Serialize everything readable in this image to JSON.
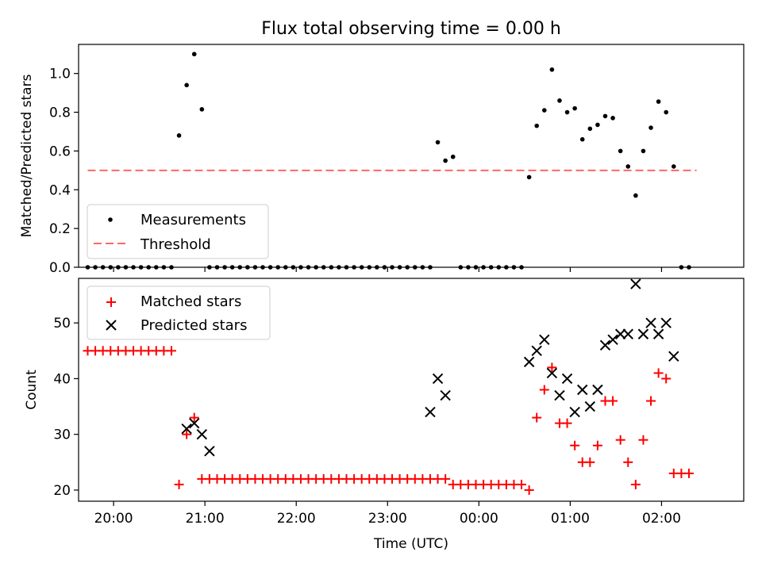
{
  "chart_data": [
    {
      "type": "scatter",
      "title": "Flux total observing time = 0.00 h",
      "ylabel": "Matched/Predicted stars",
      "xlabel": "",
      "xlim": [
        "19:37",
        "02:54"
      ],
      "ylim": [
        0,
        1.15
      ],
      "yticks": [
        0.0,
        0.2,
        0.4,
        0.6,
        0.8,
        1.0
      ],
      "ytick_labels": [
        "0.0",
        "0.2",
        "0.4",
        "0.6",
        "0.8",
        "1.0"
      ],
      "legend_position": "lower-left",
      "series": [
        {
          "name": "Measurements",
          "marker": "dot",
          "color": "#000000",
          "x": [
            "19:43",
            "19:48",
            "19:53",
            "19:58",
            "20:03",
            "20:08",
            "20:13",
            "20:18",
            "20:23",
            "20:28",
            "20:33",
            "20:38",
            "20:43",
            "20:48",
            "20:53",
            "20:58",
            "21:03",
            "21:08",
            "21:13",
            "21:18",
            "21:23",
            "21:28",
            "21:33",
            "21:38",
            "21:43",
            "21:48",
            "21:53",
            "21:58",
            "22:03",
            "22:08",
            "22:13",
            "22:18",
            "22:23",
            "22:28",
            "22:33",
            "22:38",
            "22:43",
            "22:48",
            "22:53",
            "22:58",
            "23:03",
            "23:08",
            "23:13",
            "23:18",
            "23:23",
            "23:28",
            "23:33",
            "23:38",
            "23:43",
            "23:48",
            "23:53",
            "23:58",
            "00:03",
            "00:08",
            "00:13",
            "00:18",
            "00:23",
            "00:28",
            "00:33",
            "00:38",
            "00:43",
            "00:48",
            "00:53",
            "00:58",
            "01:03",
            "01:08",
            "01:13",
            "01:18",
            "01:23",
            "01:28",
            "01:33",
            "01:38",
            "01:43",
            "01:48",
            "01:53",
            "01:58",
            "02:03",
            "02:08",
            "02:13",
            "02:18"
          ],
          "y": [
            0,
            0,
            0,
            0,
            0,
            0,
            0,
            0,
            0,
            0,
            0,
            0,
            0.68,
            0.94,
            1.1,
            0.815,
            0,
            0,
            0,
            0,
            0,
            0,
            0,
            0,
            0,
            0,
            0,
            0,
            0,
            0,
            0,
            0,
            0,
            0,
            0,
            0,
            0,
            0,
            0,
            0,
            0,
            0,
            0,
            0,
            0,
            0,
            0.645,
            0.55,
            0.57,
            0,
            0,
            0,
            0,
            0,
            0,
            0,
            0,
            0,
            0.465,
            0.73,
            0.81,
            1.02,
            0.86,
            0.8,
            0.82,
            0.66,
            0.715,
            0.735,
            0.78,
            0.77,
            0.6,
            0.52,
            0.37,
            0.6,
            0.72,
            0.855,
            0.8,
            0.52,
            0,
            0
          ]
        },
        {
          "name": "Threshold",
          "style": "dashed",
          "color": "#ff6666",
          "x": [
            "19:43",
            "02:23"
          ],
          "y": [
            0.5,
            0.5
          ]
        }
      ]
    },
    {
      "type": "scatter",
      "title": "",
      "ylabel": "Count",
      "xlabel": "Time (UTC)",
      "xlim": [
        "19:37",
        "02:54"
      ],
      "xticks": [
        "20:00",
        "21:00",
        "22:00",
        "23:00",
        "00:00",
        "01:00",
        "02:00"
      ],
      "ylim": [
        18,
        58
      ],
      "yticks": [
        20,
        30,
        40,
        50
      ],
      "ytick_labels": [
        "20",
        "30",
        "40",
        "50"
      ],
      "legend_position": "upper-left",
      "series": [
        {
          "name": "Matched stars",
          "marker": "plus",
          "color": "#ff0000",
          "x": [
            "19:43",
            "19:48",
            "19:53",
            "19:58",
            "20:03",
            "20:08",
            "20:13",
            "20:18",
            "20:23",
            "20:28",
            "20:33",
            "20:38",
            "20:43",
            "20:48",
            "20:53",
            "20:58",
            "21:03",
            "21:08",
            "21:13",
            "21:18",
            "21:23",
            "21:28",
            "21:33",
            "21:38",
            "21:43",
            "21:48",
            "21:53",
            "21:58",
            "22:03",
            "22:08",
            "22:13",
            "22:18",
            "22:23",
            "22:28",
            "22:33",
            "22:38",
            "22:43",
            "22:48",
            "22:53",
            "22:58",
            "23:03",
            "23:08",
            "23:13",
            "23:18",
            "23:23",
            "23:28",
            "23:33",
            "23:38",
            "23:43",
            "23:48",
            "23:53",
            "23:58",
            "00:03",
            "00:08",
            "00:13",
            "00:18",
            "00:23",
            "00:28",
            "00:33",
            "00:38",
            "00:43",
            "00:48",
            "00:53",
            "00:58",
            "01:03",
            "01:08",
            "01:13",
            "01:18",
            "01:23",
            "01:28",
            "01:33",
            "01:38",
            "01:43",
            "01:48",
            "01:53",
            "01:58",
            "02:03",
            "02:08",
            "02:13",
            "02:18"
          ],
          "y": [
            45,
            45,
            45,
            45,
            45,
            45,
            45,
            45,
            45,
            45,
            45,
            45,
            21,
            30,
            33,
            22,
            22,
            22,
            22,
            22,
            22,
            22,
            22,
            22,
            22,
            22,
            22,
            22,
            22,
            22,
            22,
            22,
            22,
            22,
            22,
            22,
            22,
            22,
            22,
            22,
            22,
            22,
            22,
            22,
            22,
            22,
            22,
            22,
            21,
            21,
            21,
            21,
            21,
            21,
            21,
            21,
            21,
            21,
            20,
            33,
            38,
            42,
            32,
            32,
            28,
            25,
            25,
            28,
            36,
            36,
            29,
            25,
            21,
            29,
            36,
            41,
            40,
            23,
            23,
            23
          ]
        },
        {
          "name": "Predicted stars",
          "marker": "x",
          "color": "#000000",
          "x": [
            "20:48",
            "20:53",
            "20:58",
            "21:03",
            "23:28",
            "23:33",
            "23:38",
            "00:33",
            "00:38",
            "00:43",
            "00:48",
            "00:53",
            "00:58",
            "01:03",
            "01:08",
            "01:13",
            "01:18",
            "01:23",
            "01:28",
            "01:33",
            "01:38",
            "01:43",
            "01:48",
            "01:53",
            "01:58",
            "02:03",
            "02:08"
          ],
          "y": [
            31,
            32,
            30,
            27,
            34,
            40,
            37,
            43,
            45,
            47,
            41,
            37,
            40,
            34,
            38,
            35,
            38,
            46,
            47,
            48,
            48,
            57,
            48,
            50,
            48,
            50,
            44
          ]
        }
      ]
    }
  ]
}
